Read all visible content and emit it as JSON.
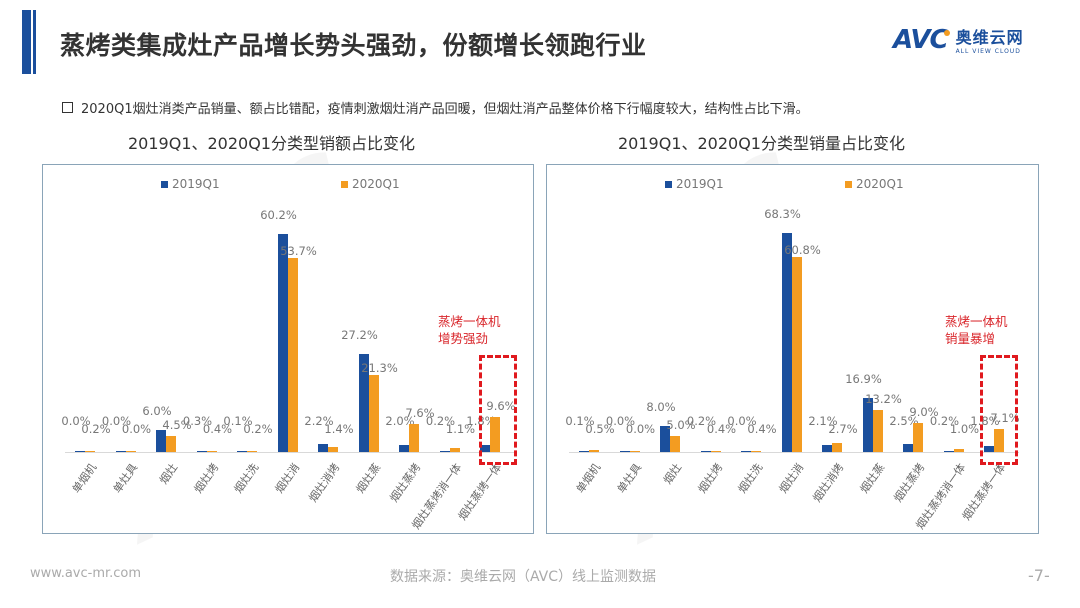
{
  "header": {
    "title": "蒸烤类集成灶产品增长势头强劲，份额增长领跑行业",
    "logo_text": "AVC",
    "logo_cn": "奥维云网",
    "logo_sub": "ALL VIEW CLOUD"
  },
  "bullet": "2020Q1烟灶消类产品销量、额占比错配，疫情刺激烟灶消产品回暖，但烟灶消产品整体价格下行幅度较大，结构性占比下滑。",
  "colors": {
    "series_2019": "#1b4f9c",
    "series_2020": "#f39c21",
    "annotation": "#d9262b",
    "brand": "#1b4f9c"
  },
  "chart_data": [
    {
      "type": "bar",
      "title": "2019Q1、2020Q1分类型销额占比变化",
      "categories": [
        "单烟机",
        "单灶具",
        "烟灶",
        "烟灶烤",
        "烟灶洗",
        "烟灶消",
        "烟灶消烤",
        "烟灶蒸",
        "烟灶蒸烤",
        "烟灶蒸烤消一体",
        "烟灶蒸烤一体"
      ],
      "series": [
        {
          "name": "2019Q1",
          "values": [
            0.0,
            0.0,
            6.0,
            0.3,
            0.1,
            60.2,
            2.2,
            27.2,
            2.0,
            0.2,
            1.8
          ],
          "labels": [
            "0.0%",
            "0.0%",
            "6.0%",
            "0.3%",
            "0.1%",
            "60.2%",
            "2.2%",
            "27.2%",
            "2.0%",
            "0.2%",
            "1.8%"
          ]
        },
        {
          "name": "2020Q1",
          "values": [
            0.2,
            0.0,
            4.5,
            0.4,
            0.2,
            53.7,
            1.4,
            21.3,
            7.6,
            1.1,
            9.6
          ],
          "labels": [
            "0.2%",
            "0.0%",
            "4.5%",
            "0.4%",
            "0.2%",
            "53.7%",
            "1.4%",
            "21.3%",
            "7.6%",
            "1.1%",
            "9.6%"
          ]
        }
      ],
      "annotation": [
        "蒸烤一体机",
        "增势强劲"
      ],
      "xlabel": "",
      "ylabel": "",
      "ylim": [
        0,
        70
      ],
      "grid": false,
      "legend_position": "top"
    },
    {
      "type": "bar",
      "title": "2019Q1、2020Q1分类型销量占比变化",
      "categories": [
        "单烟机",
        "单灶具",
        "烟灶",
        "烟灶烤",
        "烟灶洗",
        "烟灶消",
        "烟灶消烤",
        "烟灶蒸",
        "烟灶蒸烤",
        "烟灶蒸烤消一体",
        "烟灶蒸烤一体"
      ],
      "series": [
        {
          "name": "2019Q1",
          "values": [
            0.1,
            0.0,
            8.0,
            0.2,
            0.0,
            68.3,
            2.1,
            16.9,
            2.5,
            0.2,
            1.8
          ],
          "labels": [
            "0.1%",
            "0.0%",
            "8.0%",
            "0.2%",
            "0.0%",
            "68.3%",
            "2.1%",
            "16.9%",
            "2.5%",
            "0.2%",
            "1.8%"
          ]
        },
        {
          "name": "2020Q1",
          "values": [
            0.5,
            0.0,
            5.0,
            0.4,
            0.4,
            60.8,
            2.7,
            13.2,
            9.0,
            1.0,
            7.1
          ],
          "labels": [
            "0.5%",
            "0.0%",
            "5.0%",
            "0.4%",
            "0.4%",
            "60.8%",
            "2.7%",
            "13.2%",
            "9.0%",
            "1.0%",
            "7.1%"
          ]
        }
      ],
      "annotation": [
        "蒸烤一体机",
        "销量暴增"
      ],
      "xlabel": "",
      "ylabel": "",
      "ylim": [
        0,
        75
      ],
      "grid": false,
      "legend_position": "top"
    }
  ],
  "footer": {
    "website": "www.avc-mr.com",
    "source": "数据来源：奥维云网（AVC）线上监测数据",
    "page": "-7-"
  }
}
